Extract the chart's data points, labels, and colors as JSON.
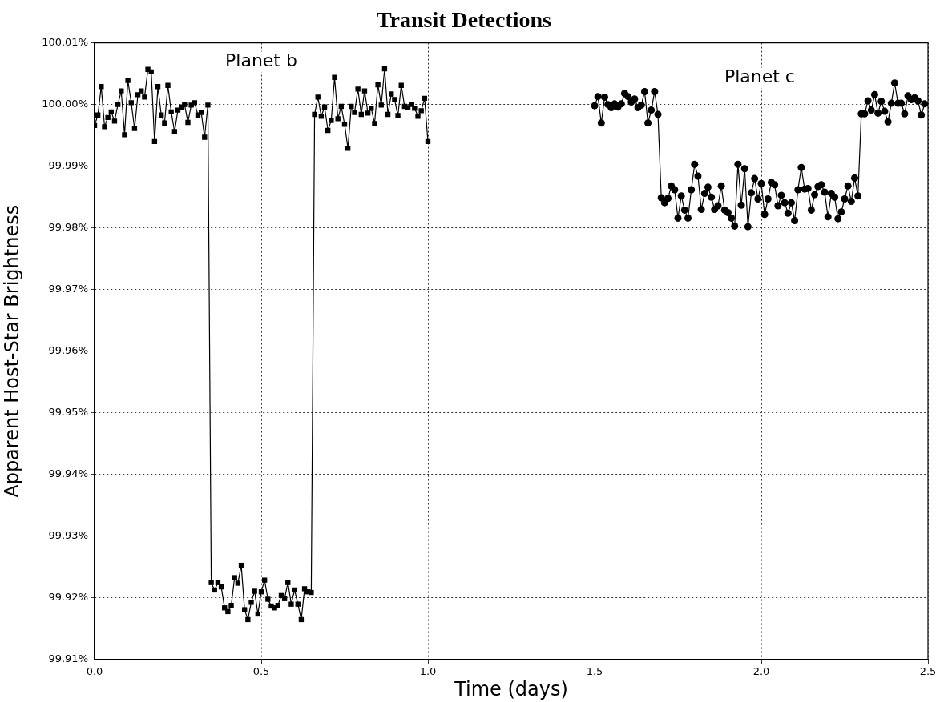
{
  "chart_data": {
    "type": "line",
    "title": "Transit Detections",
    "xlabel": "Time (days)",
    "ylabel": "Apparent Host-Star Brightness",
    "xlim": [
      0,
      2.5
    ],
    "xticks": [
      {
        "value": 0,
        "label": "0.0"
      },
      {
        "value": 0.5,
        "label": "0.5"
      },
      {
        "value": 1,
        "label": "1.0"
      },
      {
        "value": 1.5,
        "label": "1.5"
      },
      {
        "value": 2,
        "label": "2.0"
      },
      {
        "value": 2.5,
        "label": "2.5"
      }
    ],
    "ylim": [
      99.91,
      100.01
    ],
    "yticks": [
      {
        "value": 99.91,
        "label": "99.91%"
      },
      {
        "value": 99.92,
        "label": "99.92%"
      },
      {
        "value": 99.93,
        "label": "99.93%"
      },
      {
        "value": 99.94,
        "label": "99.94%"
      },
      {
        "value": 99.95,
        "label": "99.95%"
      },
      {
        "value": 99.96,
        "label": "99.96%"
      },
      {
        "value": 99.97,
        "label": "99.97%"
      },
      {
        "value": 99.98,
        "label": "99.98%"
      },
      {
        "value": 99.99,
        "label": "99.99%"
      },
      {
        "value": 100.0,
        "label": "100.00%"
      },
      {
        "value": 100.01,
        "label": "100.01%"
      }
    ],
    "grid": true,
    "legend": false,
    "line_style": "solid",
    "annotations": [
      "Planet b",
      "Planet c"
    ],
    "series": [
      {
        "color": "#000000",
        "marker": "square",
        "x": [
          0.0,
          0.01,
          0.02,
          0.03,
          0.04,
          0.05,
          0.06,
          0.07,
          0.08,
          0.09,
          0.1,
          0.11,
          0.12,
          0.13,
          0.14,
          0.15,
          0.16,
          0.17,
          0.18,
          0.19,
          0.2,
          0.21,
          0.22,
          0.23,
          0.24,
          0.25,
          0.26,
          0.27,
          0.28,
          0.29,
          0.3,
          0.31,
          0.32,
          0.33,
          0.34,
          0.35,
          0.36,
          0.37,
          0.38,
          0.39,
          0.4,
          0.41,
          0.42,
          0.43,
          0.44,
          0.45,
          0.46,
          0.47,
          0.48,
          0.49,
          0.5,
          0.51,
          0.52,
          0.53,
          0.54,
          0.55,
          0.56,
          0.57,
          0.58,
          0.59,
          0.6,
          0.61,
          0.62,
          0.63,
          0.64,
          0.65,
          0.66,
          0.67,
          0.68,
          0.69,
          0.7,
          0.71,
          0.72,
          0.73,
          0.74,
          0.75,
          0.76,
          0.77,
          0.78,
          0.79,
          0.8,
          0.81,
          0.82,
          0.83,
          0.84,
          0.85,
          0.86,
          0.87,
          0.88,
          0.89,
          0.9,
          0.91,
          0.92,
          0.93,
          0.94,
          0.95,
          0.96,
          0.97,
          0.98,
          0.99,
          1.0
        ],
        "values": [
          99.9966,
          99.9983,
          100.0029,
          99.9964,
          99.9979,
          99.9988,
          99.9973,
          100.0,
          100.0022,
          99.9951,
          100.0039,
          100.0003,
          99.9961,
          100.0016,
          100.0022,
          100.0012,
          100.0057,
          100.0053,
          99.994,
          100.0029,
          99.9983,
          99.997,
          100.0031,
          99.9988,
          99.9956,
          99.9991,
          99.9996,
          100.0,
          99.9971,
          99.9999,
          100.0003,
          99.9983,
          99.9987,
          99.9947,
          99.9999,
          99.9225,
          99.9213,
          99.9225,
          99.9218,
          99.9184,
          99.9178,
          99.9188,
          99.9233,
          99.9224,
          99.9253,
          99.9181,
          99.9165,
          99.9193,
          99.9211,
          99.9174,
          99.921,
          99.9229,
          99.9198,
          99.9187,
          99.9184,
          99.9188,
          99.9204,
          99.9199,
          99.9225,
          99.919,
          99.9213,
          99.919,
          99.9165,
          99.9215,
          99.921,
          99.9209,
          99.9984,
          100.0012,
          99.9981,
          99.9996,
          99.9958,
          99.9974,
          100.0044,
          99.9977,
          99.9997,
          99.9968,
          99.9929,
          99.9997,
          99.9987,
          100.0025,
          99.9984,
          100.0022,
          99.9986,
          99.9994,
          99.9969,
          100.0032,
          99.9999,
          100.0058,
          99.9984,
          100.0017,
          100.0008,
          99.9982,
          100.0031,
          99.9997,
          99.9995,
          100.0,
          99.9994,
          99.9981,
          99.999,
          100.001,
          99.994
        ]
      },
      {
        "color": "#000000",
        "marker": "circle",
        "x": [
          1.5,
          1.51,
          1.52,
          1.53,
          1.54,
          1.55,
          1.56,
          1.57,
          1.58,
          1.59,
          1.6,
          1.61,
          1.62,
          1.63,
          1.64,
          1.65,
          1.66,
          1.67,
          1.68,
          1.69,
          1.7,
          1.71,
          1.72,
          1.73,
          1.74,
          1.75,
          1.76,
          1.77,
          1.78,
          1.79,
          1.8,
          1.81,
          1.82,
          1.83,
          1.84,
          1.85,
          1.86,
          1.87,
          1.88,
          1.89,
          1.9,
          1.91,
          1.92,
          1.93,
          1.94,
          1.95,
          1.96,
          1.97,
          1.98,
          1.99,
          2.0,
          2.01,
          2.02,
          2.03,
          2.04,
          2.05,
          2.06,
          2.07,
          2.08,
          2.09,
          2.1,
          2.11,
          2.12,
          2.13,
          2.14,
          2.15,
          2.16,
          2.17,
          2.18,
          2.19,
          2.2,
          2.21,
          2.22,
          2.23,
          2.24,
          2.25,
          2.26,
          2.27,
          2.28,
          2.29,
          2.3,
          2.31,
          2.32,
          2.33,
          2.34,
          2.35,
          2.36,
          2.37,
          2.38,
          2.39,
          2.4,
          2.41,
          2.42,
          2.43,
          2.44,
          2.45,
          2.46,
          2.47,
          2.48,
          2.49
        ],
        "values": [
          99.9998,
          100.0013,
          99.997,
          100.0012,
          100.0,
          99.9995,
          100.0001,
          99.9996,
          100.0001,
          100.0018,
          100.0013,
          100.0004,
          100.0009,
          99.9995,
          99.9999,
          100.0021,
          99.997,
          99.9991,
          100.0021,
          99.9984,
          99.9849,
          99.9841,
          99.9848,
          99.9868,
          99.9862,
          99.9816,
          99.9852,
          99.9829,
          99.9816,
          99.9862,
          99.9903,
          99.9884,
          99.983,
          99.9856,
          99.9866,
          99.985,
          99.983,
          99.9836,
          99.9868,
          99.9829,
          99.9825,
          99.9816,
          99.9803,
          99.9903,
          99.9837,
          99.9896,
          99.9802,
          99.9857,
          99.988,
          99.9847,
          99.9872,
          99.9822,
          99.9847,
          99.9874,
          99.987,
          99.9836,
          99.9853,
          99.9841,
          99.9824,
          99.9841,
          99.9812,
          99.9862,
          99.9898,
          99.9863,
          99.9864,
          99.9829,
          99.9854,
          99.9867,
          99.987,
          99.9858,
          99.9818,
          99.9856,
          99.985,
          99.9815,
          99.9826,
          99.9847,
          99.9868,
          99.9843,
          99.9881,
          99.9852,
          99.9985,
          99.9985,
          100.0006,
          99.9991,
          100.0016,
          99.9986,
          100.0005,
          99.9989,
          99.9972,
          100.0002,
          100.0035,
          100.0002,
          100.0002,
          99.9985,
          100.0014,
          100.0008,
          100.0011,
          100.0006,
          99.9983,
          100.0001
        ]
      }
    ]
  }
}
